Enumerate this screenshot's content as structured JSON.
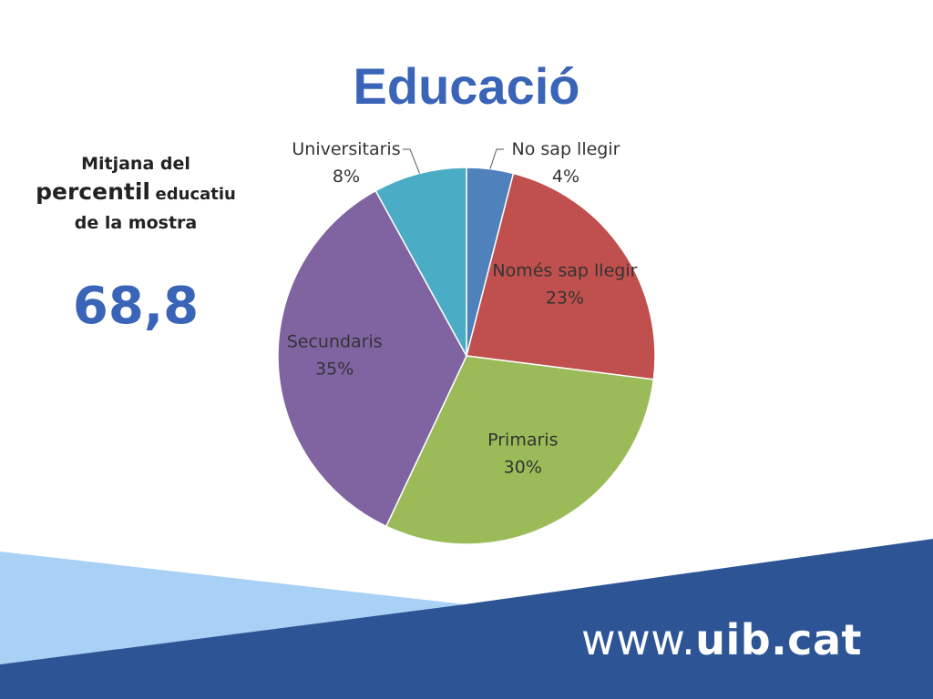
{
  "chart_data": {
    "type": "pie",
    "title": "Educació",
    "categories": [
      "No sap llegir",
      "Només sap llegir",
      "Primaris",
      "Secundaris",
      "Universitaris"
    ],
    "values": [
      4,
      23,
      30,
      35,
      8
    ],
    "value_labels": [
      "4%",
      "23%",
      "30%",
      "35%",
      "8%"
    ],
    "colors": [
      "#4f81bd",
      "#c0504d",
      "#9bbb59",
      "#8064a2",
      "#4bacc6"
    ],
    "legend": "none",
    "start_angle": "12 o'clock, clockwise"
  },
  "side_panel": {
    "line1": "Mitjana del",
    "line2_big": "percentil",
    "line2_small": "educatiu",
    "line3": "de la mostra",
    "value": "68,8"
  },
  "footer": {
    "url_prefix": "www.",
    "url_bold": "uib.cat",
    "colors": {
      "light_band": "#a9d0f5",
      "dark_band": "#2d5596"
    }
  }
}
